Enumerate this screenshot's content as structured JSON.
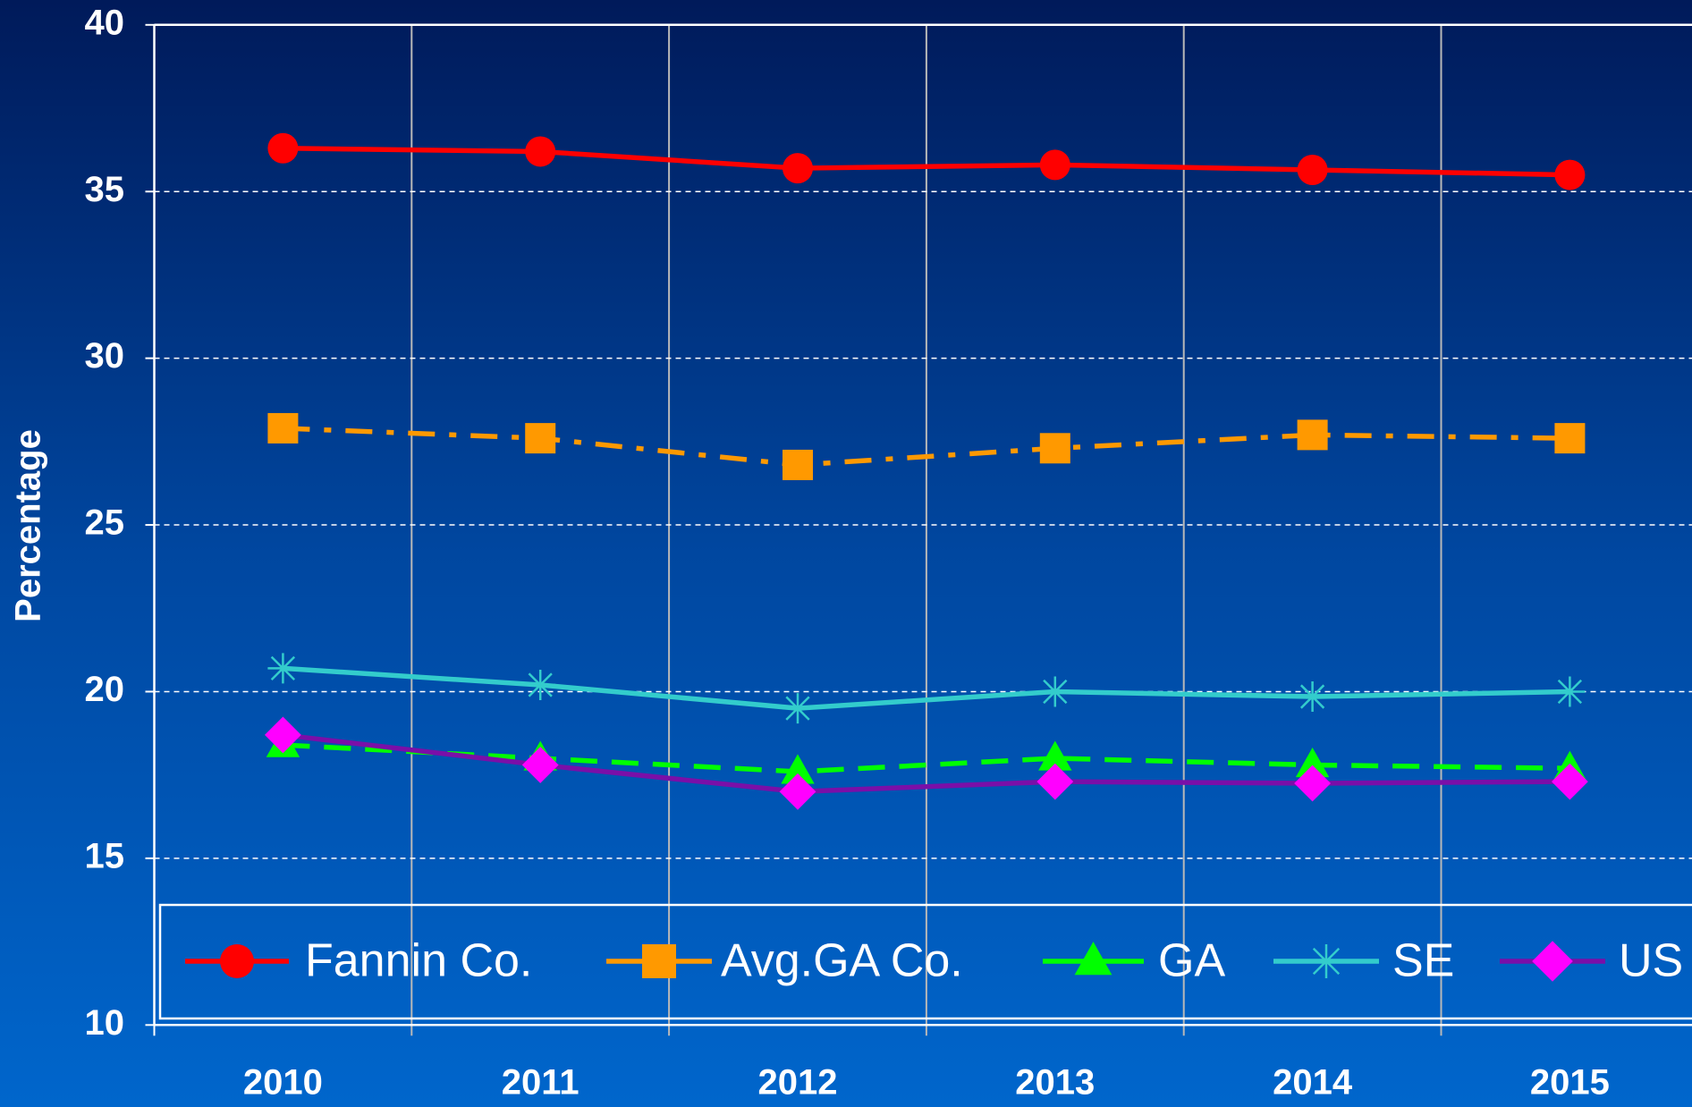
{
  "chart_data": {
    "type": "line",
    "ylabel": "Percentage",
    "categories": [
      "2010",
      "2011",
      "2012",
      "2013",
      "2014",
      "2015"
    ],
    "ylim": [
      10,
      40
    ],
    "yticks": [
      10,
      15,
      20,
      25,
      30,
      35,
      40
    ],
    "grid": true,
    "legend": "bottom",
    "series": [
      {
        "name": "Fannin Co.",
        "color": "#ff0000",
        "marker": "circle",
        "line_style": "solid",
        "values": [
          36.3,
          36.2,
          35.7,
          35.8,
          35.65,
          35.5
        ]
      },
      {
        "name": "Avg.GA Co.",
        "color": "#ff9900",
        "marker": "square",
        "line_style": "dashdot",
        "values": [
          27.9,
          27.6,
          26.8,
          27.3,
          27.7,
          27.6
        ]
      },
      {
        "name": "GA",
        "color": "#00ff00",
        "marker": "triangle",
        "line_style": "dashed",
        "values": [
          18.4,
          18.0,
          17.6,
          18.0,
          17.8,
          17.7
        ]
      },
      {
        "name": "SE",
        "color": "#33cccc",
        "marker": "asterisk",
        "line_style": "solid",
        "values": [
          20.7,
          20.2,
          19.5,
          20.0,
          19.85,
          20.0
        ]
      },
      {
        "name": "US",
        "color": "#7a0fa8",
        "marker_color": "#ff00ff",
        "marker": "diamond",
        "line_style": "solid",
        "values": [
          18.7,
          17.8,
          17.0,
          17.3,
          17.25,
          17.3
        ]
      }
    ]
  }
}
